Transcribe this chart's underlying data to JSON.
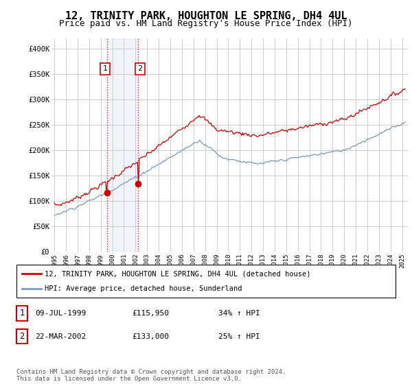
{
  "title": "12, TRINITY PARK, HOUGHTON LE SPRING, DH4 4UL",
  "subtitle": "Price paid vs. HM Land Registry's House Price Index (HPI)",
  "title_fontsize": 11,
  "subtitle_fontsize": 9,
  "ylim": [
    0,
    420000
  ],
  "yticks": [
    0,
    50000,
    100000,
    150000,
    200000,
    250000,
    300000,
    350000,
    400000
  ],
  "ytick_labels": [
    "£0",
    "£50K",
    "£100K",
    "£150K",
    "£200K",
    "£250K",
    "£300K",
    "£350K",
    "£400K"
  ],
  "background_color": "#ffffff",
  "grid_color": "#cccccc",
  "red_color": "#cc0000",
  "blue_color": "#7799bb",
  "t1": 1999.52,
  "t2": 2002.22,
  "price1": 115950,
  "price2": 133000,
  "legend_line1": "12, TRINITY PARK, HOUGHTON LE SPRING, DH4 4UL (detached house)",
  "legend_line2": "HPI: Average price, detached house, Sunderland",
  "table_row1": [
    "1",
    "09-JUL-1999",
    "£115,950",
    "34% ↑ HPI"
  ],
  "table_row2": [
    "2",
    "22-MAR-2002",
    "£133,000",
    "25% ↑ HPI"
  ],
  "footer": "Contains HM Land Registry data © Crown copyright and database right 2024.\nThis data is licensed under the Open Government Licence v3.0.",
  "xmin": 1994.75,
  "xmax": 2025.5
}
